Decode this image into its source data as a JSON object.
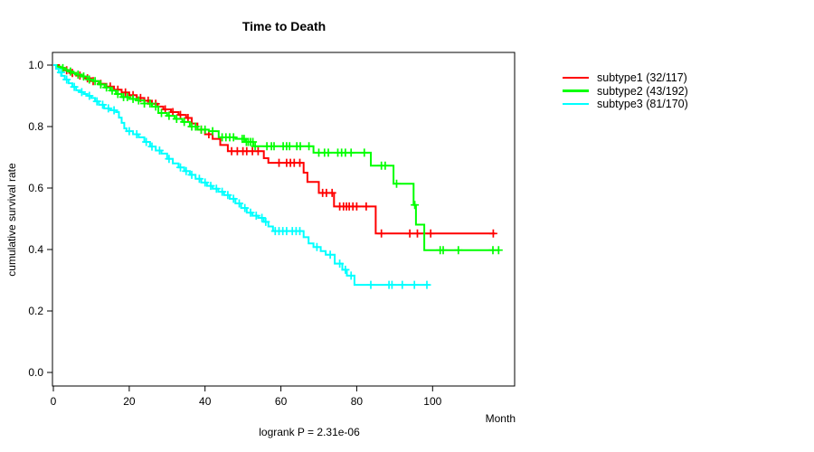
{
  "chart_data": {
    "type": "line",
    "variant": "kaplan-meier-step",
    "title": "Time to Death",
    "xlabel": "Month",
    "ylabel": "cumulative survival rate",
    "footnote": "logrank P = 2.31e-06",
    "xlim": [
      0,
      121.6
    ],
    "ylim": [
      0,
      1
    ],
    "grid": false,
    "legend_position": "right-outside",
    "x_ticks": [
      0,
      20,
      40,
      60,
      80,
      100
    ],
    "x_tick_labels": [
      "0",
      "20",
      "40",
      "60",
      "80",
      "100"
    ],
    "y_ticks": [
      0,
      0.2,
      0.4,
      0.6,
      0.8,
      1.0
    ],
    "y_tick_labels": [
      "0.0",
      "0.2",
      "0.4",
      "0.6",
      "0.8",
      "1.0"
    ],
    "series": [
      {
        "name": "subtype1 (32/117)",
        "events": 32,
        "n": 117,
        "color": "#ff0000",
        "end_time": 116.5,
        "steps": [
          [
            0,
            1.0
          ],
          [
            1.5,
            0.991
          ],
          [
            3,
            0.983
          ],
          [
            4.5,
            0.974
          ],
          [
            6,
            0.966
          ],
          [
            8,
            0.957
          ],
          [
            10,
            0.948
          ],
          [
            12,
            0.939
          ],
          [
            14,
            0.93
          ],
          [
            16,
            0.92
          ],
          [
            18,
            0.911
          ],
          [
            20,
            0.902
          ],
          [
            22,
            0.893
          ],
          [
            24,
            0.884
          ],
          [
            26,
            0.874
          ],
          [
            27.5,
            0.865
          ],
          [
            29,
            0.856
          ],
          [
            31,
            0.847
          ],
          [
            33,
            0.838
          ],
          [
            35,
            0.828
          ],
          [
            36.5,
            0.81
          ],
          [
            38,
            0.79
          ],
          [
            40,
            0.775
          ],
          [
            42,
            0.76
          ],
          [
            44,
            0.74
          ],
          [
            46,
            0.72
          ],
          [
            55.5,
            0.697
          ],
          [
            56.7,
            0.682
          ],
          [
            66,
            0.65
          ],
          [
            67,
            0.62
          ],
          [
            70,
            0.584
          ],
          [
            74,
            0.54
          ],
          [
            85,
            0.452
          ]
        ],
        "censor_times": [
          3.5,
          5,
          7,
          9,
          10.5,
          12.5,
          15,
          17,
          19,
          21,
          23,
          25,
          27,
          29.5,
          31.5,
          33.5,
          35.5,
          39,
          41,
          47,
          48.5,
          50,
          51,
          52.5,
          54,
          59.5,
          61.5,
          62.5,
          63.5,
          65,
          71,
          72,
          73.5,
          75.5,
          76.5,
          77.3,
          78,
          79,
          80,
          82.5,
          86.5,
          94,
          96,
          99.5,
          116
        ]
      },
      {
        "name": "subtype2 (43/192)",
        "events": 43,
        "n": 192,
        "color": "#00ff00",
        "end_time": 117.6,
        "steps": [
          [
            0,
            1.0
          ],
          [
            1,
            0.995
          ],
          [
            2,
            0.99
          ],
          [
            3,
            0.984
          ],
          [
            4,
            0.979
          ],
          [
            5,
            0.974
          ],
          [
            6,
            0.969
          ],
          [
            7.5,
            0.963
          ],
          [
            9,
            0.953
          ],
          [
            10.5,
            0.948
          ],
          [
            12,
            0.937
          ],
          [
            13.5,
            0.927
          ],
          [
            15,
            0.917
          ],
          [
            16.5,
            0.906
          ],
          [
            18,
            0.896
          ],
          [
            20,
            0.89
          ],
          [
            22,
            0.885
          ],
          [
            24,
            0.875
          ],
          [
            26,
            0.865
          ],
          [
            27.7,
            0.844
          ],
          [
            30,
            0.835
          ],
          [
            32,
            0.825
          ],
          [
            34,
            0.815
          ],
          [
            36,
            0.8
          ],
          [
            38,
            0.79
          ],
          [
            41,
            0.785
          ],
          [
            43.6,
            0.765
          ],
          [
            48,
            0.76
          ],
          [
            50.7,
            0.75
          ],
          [
            52.7,
            0.736
          ],
          [
            68.6,
            0.715
          ],
          [
            83.7,
            0.673
          ],
          [
            89.7,
            0.614
          ],
          [
            95,
            0.545
          ],
          [
            95.6,
            0.481
          ],
          [
            97.8,
            0.398
          ]
        ],
        "censor_times": [
          2.5,
          4.5,
          6.5,
          8,
          9.5,
          11,
          12.5,
          14,
          15.5,
          17,
          18.5,
          19.5,
          21,
          22.5,
          24,
          25.5,
          27,
          28.5,
          30.5,
          32.5,
          34.5,
          36.5,
          37.5,
          39,
          40,
          42,
          44.5,
          45.5,
          46.5,
          47.5,
          49.8,
          50.3,
          50.9,
          51.4,
          52,
          52.6,
          53.2,
          56.3,
          57.5,
          58.2,
          60.6,
          61.5,
          62.3,
          64.2,
          65.1,
          67.4,
          70,
          71.5,
          72.5,
          75,
          76,
          77,
          78.5,
          82,
          86.5,
          87.5,
          90.5,
          95.3,
          102,
          102.8,
          106.8,
          115.9,
          117.4
        ]
      },
      {
        "name": "subtype3 (81/170)",
        "events": 81,
        "n": 170,
        "color": "#00ffff",
        "end_time": 99.2,
        "steps": [
          [
            0,
            1.0
          ],
          [
            0.7,
            0.988
          ],
          [
            1.4,
            0.976
          ],
          [
            2.2,
            0.965
          ],
          [
            3,
            0.953
          ],
          [
            4,
            0.941
          ],
          [
            5,
            0.929
          ],
          [
            6,
            0.918
          ],
          [
            7,
            0.912
          ],
          [
            8,
            0.906
          ],
          [
            9,
            0.9
          ],
          [
            10,
            0.893
          ],
          [
            11,
            0.882
          ],
          [
            12,
            0.871
          ],
          [
            13.4,
            0.859
          ],
          [
            15,
            0.853
          ],
          [
            16.5,
            0.847
          ],
          [
            17.3,
            0.829
          ],
          [
            18,
            0.812
          ],
          [
            18.7,
            0.794
          ],
          [
            19.3,
            0.785
          ],
          [
            21,
            0.775
          ],
          [
            22.5,
            0.765
          ],
          [
            24,
            0.75
          ],
          [
            25.5,
            0.735
          ],
          [
            27,
            0.722
          ],
          [
            28.5,
            0.712
          ],
          [
            30,
            0.695
          ],
          [
            31.5,
            0.68
          ],
          [
            33,
            0.667
          ],
          [
            34.5,
            0.655
          ],
          [
            36,
            0.643
          ],
          [
            37.5,
            0.63
          ],
          [
            39,
            0.618
          ],
          [
            40.5,
            0.607
          ],
          [
            42,
            0.598
          ],
          [
            43.5,
            0.588
          ],
          [
            45,
            0.577
          ],
          [
            46.5,
            0.565
          ],
          [
            48,
            0.55
          ],
          [
            49.5,
            0.535
          ],
          [
            51,
            0.52
          ],
          [
            52.5,
            0.51
          ],
          [
            54,
            0.503
          ],
          [
            55.5,
            0.49
          ],
          [
            56.7,
            0.475
          ],
          [
            57.9,
            0.46
          ],
          [
            66,
            0.44
          ],
          [
            67.3,
            0.42
          ],
          [
            68.6,
            0.408
          ],
          [
            70.5,
            0.395
          ],
          [
            71.8,
            0.383
          ],
          [
            74.2,
            0.354
          ],
          [
            76.2,
            0.334
          ],
          [
            77.4,
            0.315
          ],
          [
            79.4,
            0.285
          ]
        ],
        "censor_times": [
          2,
          3.5,
          5.5,
          7.5,
          9.5,
          11.5,
          13,
          14.5,
          16,
          20,
          22,
          24.5,
          26,
          28,
          30.5,
          33.5,
          35,
          36.5,
          38.5,
          40,
          41.5,
          43,
          44.5,
          46,
          47.5,
          49,
          50.5,
          52,
          53.5,
          55,
          56,
          58.5,
          59.5,
          60.5,
          61.5,
          63,
          64,
          65,
          69.5,
          73,
          75.5,
          77,
          78.5,
          83.7,
          88.5,
          89.3,
          92,
          95.2,
          98.5
        ]
      }
    ]
  }
}
